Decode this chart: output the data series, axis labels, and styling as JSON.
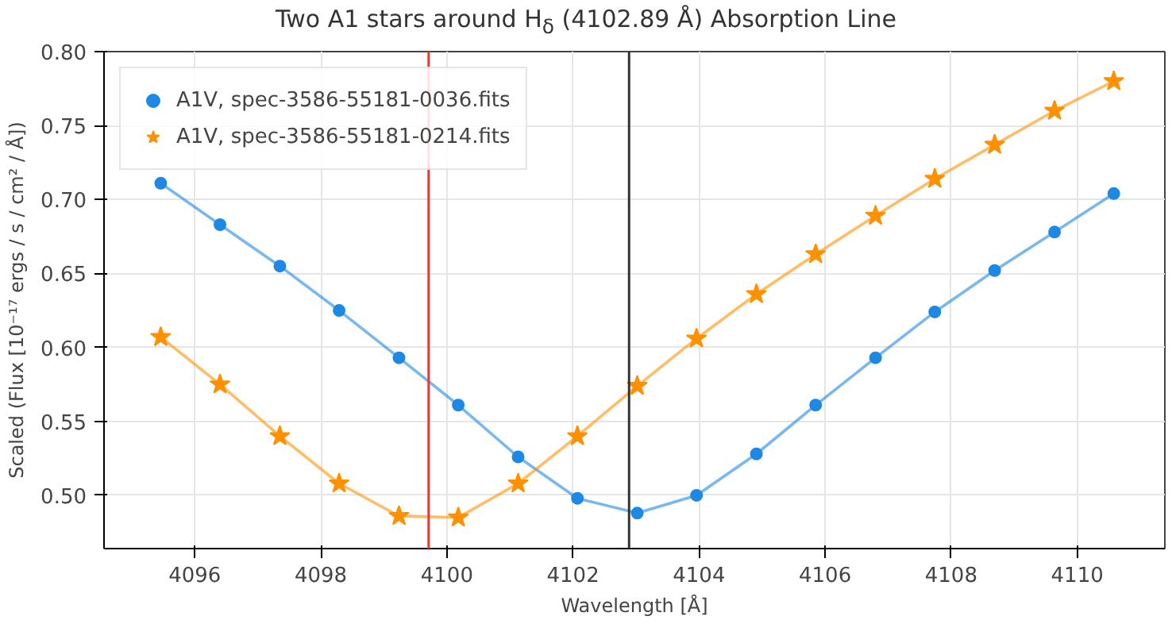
{
  "chart_data": {
    "type": "line",
    "title": "Two A1 stars around H$_{δ}$ (4102.89 Å) Absorption Line",
    "xlabel": "Wavelength [Å]",
    "ylabel": "Scaled (Flux [10⁻¹⁷ ergs / s / cm² / Å])",
    "x": [
      4095.46,
      4096.4,
      4097.35,
      4098.29,
      4099.24,
      4100.18,
      4101.13,
      4102.07,
      4103.02,
      4103.96,
      4104.91,
      4105.85,
      4106.8,
      4107.74,
      4108.69,
      4109.64,
      4110.58
    ],
    "series": [
      {
        "name": "A1V, spec-3586-55181-0036.fits",
        "color": "#1e88e5",
        "marker": "circle",
        "values": [
          0.711,
          0.683,
          0.655,
          0.625,
          0.593,
          0.561,
          0.526,
          0.498,
          0.488,
          0.5,
          0.528,
          0.561,
          0.593,
          0.624,
          0.652,
          0.678,
          0.704
        ]
      },
      {
        "name": "A1V, spec-3586-55181-0214.fits",
        "color": "#ff9100",
        "marker": "star",
        "values": [
          0.607,
          0.575,
          0.54,
          0.508,
          0.486,
          0.485,
          0.508,
          0.54,
          0.574,
          0.606,
          0.636,
          0.663,
          0.689,
          0.714,
          0.737,
          0.76,
          0.78
        ]
      }
    ],
    "ref_lines": [
      {
        "axis": "x",
        "value": 4099.71,
        "color": "#e53935"
      },
      {
        "axis": "x",
        "value": 4102.89,
        "color": "#333333"
      }
    ],
    "xlim": [
      4094.56,
      4111.39
    ],
    "ylim": [
      0.464,
      0.8
    ],
    "xticks": [
      4096,
      4098,
      4100,
      4102,
      4104,
      4106,
      4108,
      4110
    ],
    "yticks": [
      {
        "value": 0.5,
        "label": "0.50"
      },
      0.55,
      {
        "value": 0.6,
        "label": "0.60"
      },
      0.65,
      {
        "value": 0.7,
        "label": "0.70"
      },
      0.75,
      {
        "value": 0.8,
        "label": "0.80"
      }
    ],
    "grid": true,
    "legend": "top left",
    "line_style": "solid"
  }
}
